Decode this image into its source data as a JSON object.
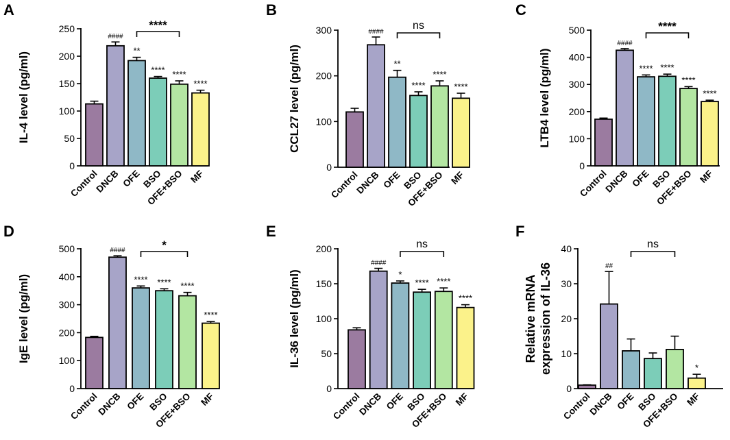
{
  "figure": {
    "categories": [
      "Control",
      "DNCB",
      "OFE",
      "BSO",
      "OFE+BSO",
      "MF"
    ],
    "colors": [
      "#9b7ba0",
      "#a7a4c8",
      "#8fb8c6",
      "#7ccdb8",
      "#b3e6a2",
      "#fbf28a"
    ]
  },
  "chart_data": [
    {
      "type": "bar",
      "panel": "A",
      "ylabel": "IL-4 level (pg/ml)",
      "categories": [
        "Control",
        "DNCB",
        "OFE",
        "BSO",
        "OFE+BSO",
        "MF"
      ],
      "values": [
        113,
        219,
        192,
        160,
        149,
        133
      ],
      "errors": [
        5,
        7,
        6,
        3,
        6,
        5
      ],
      "ylim": [
        0,
        250
      ],
      "ticks": [
        0,
        50,
        100,
        150,
        200,
        250
      ],
      "annotations": [
        "",
        "####",
        "**",
        "****",
        "****",
        "****"
      ],
      "bracket": {
        "from": 2,
        "to": 4,
        "label": "****"
      }
    },
    {
      "type": "bar",
      "panel": "B",
      "ylabel": "CCL27 level (pg/ml)",
      "categories": [
        "Control",
        "DNCB",
        "OFE",
        "BSO",
        "OFE+BSO",
        "MF"
      ],
      "values": [
        121,
        268,
        197,
        157,
        178,
        151
      ],
      "errors": [
        8,
        17,
        15,
        8,
        11,
        11
      ],
      "ylim": [
        0,
        300
      ],
      "ticks": [
        0,
        100,
        200,
        300
      ],
      "annotations": [
        "",
        "####",
        "**",
        "****",
        "****",
        "****"
      ],
      "bracket": {
        "from": 2,
        "to": 4,
        "label": "ns"
      }
    },
    {
      "type": "bar",
      "panel": "C",
      "ylabel": "LTB4 level (pg/ml)",
      "categories": [
        "Control",
        "DNCB",
        "OFE",
        "BSO",
        "OFE+BSO",
        "MF"
      ],
      "values": [
        172,
        426,
        328,
        330,
        285,
        237
      ],
      "errors": [
        4,
        6,
        7,
        8,
        7,
        5
      ],
      "ylim": [
        0,
        500
      ],
      "ticks": [
        0,
        100,
        200,
        300,
        400,
        500
      ],
      "annotations": [
        "",
        "####",
        "****",
        "****",
        "****",
        "****"
      ],
      "bracket": {
        "from": 2,
        "to": 4,
        "label": "****"
      }
    },
    {
      "type": "bar",
      "panel": "D",
      "ylabel": "IgE level (pg/ml)",
      "categories": [
        "Control",
        "DNCB",
        "OFE",
        "BSO",
        "OFE+BSO",
        "MF"
      ],
      "values": [
        183,
        470,
        360,
        350,
        332,
        234
      ],
      "errors": [
        4,
        5,
        7,
        7,
        12,
        6
      ],
      "ylim": [
        0,
        500
      ],
      "ticks": [
        0,
        100,
        200,
        300,
        400,
        500
      ],
      "annotations": [
        "",
        "####",
        "****",
        "****",
        "****",
        "****"
      ],
      "bracket": {
        "from": 2,
        "to": 4,
        "label": "*"
      }
    },
    {
      "type": "bar",
      "panel": "E",
      "ylabel": "IL-36 level (pg/ml)",
      "categories": [
        "Control",
        "DNCB",
        "OFE",
        "BSO",
        "OFE+BSO",
        "MF"
      ],
      "values": [
        84,
        168,
        151,
        138,
        139,
        116
      ],
      "errors": [
        3,
        4,
        3,
        4,
        5,
        4
      ],
      "ylim": [
        0,
        200
      ],
      "ticks": [
        0,
        50,
        100,
        150,
        200
      ],
      "annotations": [
        "",
        "####",
        "*",
        "****",
        "****",
        "****"
      ],
      "bracket": {
        "from": 2,
        "to": 4,
        "label": "ns"
      }
    },
    {
      "type": "bar",
      "panel": "F",
      "ylabel": "Relative mRNA expression of IL-36",
      "ylabel_lines": [
        "Relative mRNA",
        "expression of IL-36"
      ],
      "categories": [
        "Control",
        "DNCB",
        "OFE",
        "BSO",
        "OFE+BSO",
        "MF"
      ],
      "values": [
        1,
        24.2,
        10.8,
        8.6,
        11.2,
        3.0
      ],
      "errors": [
        0.1,
        9.3,
        3.4,
        1.6,
        3.8,
        1.1
      ],
      "ylim": [
        0,
        40
      ],
      "ticks": [
        0,
        10,
        20,
        30,
        40
      ],
      "annotations": [
        "",
        "##",
        "",
        "",
        "",
        "*"
      ],
      "bracket": {
        "from": 2,
        "to": 4,
        "label": "ns"
      }
    }
  ]
}
